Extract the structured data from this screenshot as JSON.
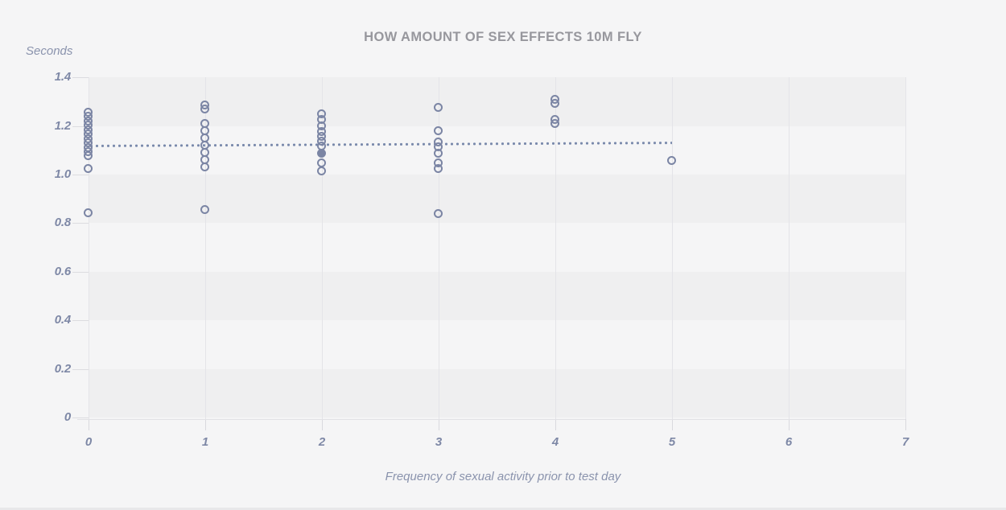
{
  "page": {
    "title": "HOW AMOUNT OF SEX EFFECTS 10M FLY"
  },
  "style": {
    "background": "#f5f5f6",
    "band": "#efeff0",
    "grid": "#e4e4e8",
    "point": "#7b85a4",
    "mean_line": "#7989ab",
    "title_color": "#97979d",
    "tick_label_color": "#7e88a6",
    "caption_color": "#8a93ad"
  },
  "chart_data": {
    "type": "scatter",
    "title": "HOW AMOUNT OF SEX EFFECTS 10M FLY",
    "ylabel": "Seconds",
    "xlabel": "Frequency of sexual activity prior to test day",
    "xlim": [
      0,
      7
    ],
    "ylim": [
      0,
      1.4
    ],
    "x_ticks": [
      0,
      1,
      2,
      3,
      4,
      5,
      6,
      7
    ],
    "x_tick_labels": [
      "0",
      "1",
      "2",
      "3",
      "4",
      "5",
      "6",
      "7"
    ],
    "y_ticks": [
      0,
      0.2,
      0.4,
      0.6,
      0.8,
      1.0,
      1.2,
      1.4
    ],
    "y_tick_labels": [
      "0",
      "0.2",
      "0.4",
      "0.6",
      "0.8",
      "1.0",
      "1.2",
      "1.4"
    ],
    "grid": "vertical gridlines at each x tick; alternating horizontal gray bands per 0.2",
    "legend": "none",
    "series": [
      {
        "name": "fly-times-open-circles",
        "marker": "open-circle",
        "points": [
          [
            0,
            1.255
          ],
          [
            0,
            1.237
          ],
          [
            0,
            1.219
          ],
          [
            0,
            1.201
          ],
          [
            0,
            1.183
          ],
          [
            0,
            1.165
          ],
          [
            0,
            1.147
          ],
          [
            0,
            1.129
          ],
          [
            0,
            1.111
          ],
          [
            0,
            1.093
          ],
          [
            0,
            1.075
          ],
          [
            0,
            1.022
          ],
          [
            0,
            0.843
          ],
          [
            1,
            1.285
          ],
          [
            1,
            1.268
          ],
          [
            1,
            1.208
          ],
          [
            1,
            1.178
          ],
          [
            1,
            1.148
          ],
          [
            1,
            1.119
          ],
          [
            1,
            1.089
          ],
          [
            1,
            1.059
          ],
          [
            1,
            1.031
          ],
          [
            1,
            0.855
          ],
          [
            2,
            1.25
          ],
          [
            2,
            1.224
          ],
          [
            2,
            1.199
          ],
          [
            2,
            1.176
          ],
          [
            2,
            1.155
          ],
          [
            2,
            1.135
          ],
          [
            2,
            1.115
          ],
          [
            2,
            1.045
          ],
          [
            2,
            1.015
          ],
          [
            3,
            1.275
          ],
          [
            3,
            1.18
          ],
          [
            3,
            1.132
          ],
          [
            3,
            1.112
          ],
          [
            3,
            1.087
          ],
          [
            3,
            1.045
          ],
          [
            3,
            1.025
          ],
          [
            3,
            0.838
          ],
          [
            4,
            1.308
          ],
          [
            4,
            1.29
          ],
          [
            4,
            1.226
          ],
          [
            4,
            1.208
          ],
          [
            5,
            1.055
          ]
        ]
      },
      {
        "name": "fly-times-filled-point",
        "marker": "filled-circle",
        "points": [
          [
            2,
            1.085
          ]
        ]
      }
    ],
    "mean_line": {
      "style": "dotted",
      "from": [
        0,
        1.118
      ],
      "to": [
        5,
        1.131
      ]
    }
  }
}
